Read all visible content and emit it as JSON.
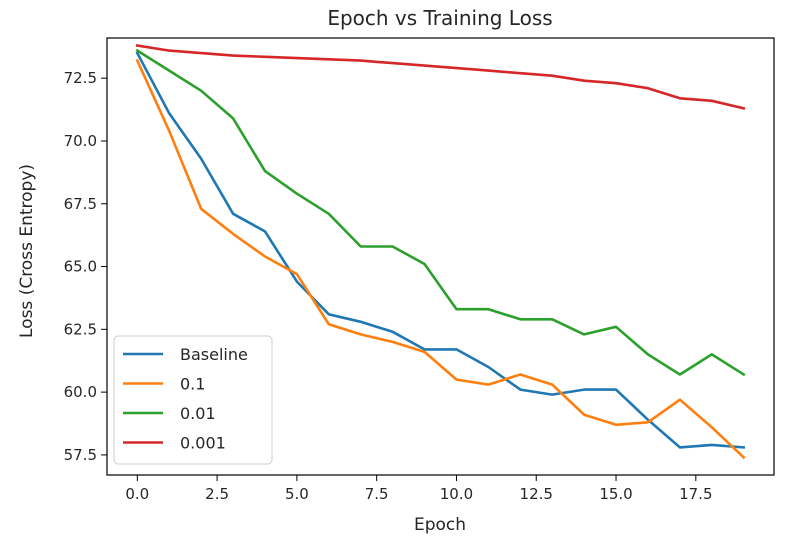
{
  "chart_data": {
    "type": "line",
    "title": "Epoch vs Training Loss",
    "xlabel": "Epoch",
    "ylabel": "Loss (Cross Entropy)",
    "xlim": [
      -0.95,
      19.95
    ],
    "ylim": [
      56.7,
      74.1
    ],
    "xticks": [
      0.0,
      2.5,
      5.0,
      7.5,
      10.0,
      12.5,
      15.0,
      17.5
    ],
    "xtick_labels": [
      "0.0",
      "2.5",
      "5.0",
      "7.5",
      "10.0",
      "12.5",
      "15.0",
      "17.5"
    ],
    "yticks": [
      57.5,
      60.0,
      62.5,
      65.0,
      67.5,
      70.0,
      72.5
    ],
    "ytick_labels": [
      "57.5",
      "60.0",
      "62.5",
      "65.0",
      "67.5",
      "70.0",
      "72.5"
    ],
    "grid": false,
    "legend_position": "lower-left",
    "x": [
      0,
      1,
      2,
      3,
      4,
      5,
      6,
      7,
      8,
      9,
      10,
      11,
      12,
      13,
      14,
      15,
      16,
      17,
      18,
      19
    ],
    "series": [
      {
        "name": "Baseline",
        "color": "#1f77b4",
        "values": [
          73.5,
          71.1,
          69.3,
          67.1,
          66.4,
          64.4,
          63.1,
          62.8,
          62.4,
          61.7,
          61.7,
          61.0,
          60.1,
          59.9,
          60.1,
          60.1,
          58.9,
          57.8,
          57.9,
          57.8
        ]
      },
      {
        "name": "0.1",
        "color": "#ff7f0e",
        "values": [
          73.2,
          70.4,
          67.3,
          66.3,
          65.4,
          64.7,
          62.7,
          62.3,
          62.0,
          61.6,
          60.5,
          60.3,
          60.7,
          60.3,
          59.1,
          58.7,
          58.8,
          59.7,
          58.6,
          57.4
        ]
      },
      {
        "name": "0.01",
        "color": "#2ca02c",
        "values": [
          73.6,
          72.8,
          72.0,
          70.9,
          68.8,
          67.9,
          67.1,
          65.8,
          65.8,
          65.1,
          63.3,
          63.3,
          62.9,
          62.9,
          62.3,
          62.6,
          61.5,
          60.7,
          61.5,
          60.7
        ]
      },
      {
        "name": "0.001",
        "color": "#d62728",
        "values": [
          73.8,
          73.6,
          73.5,
          73.4,
          73.35,
          73.3,
          73.25,
          73.2,
          73.1,
          73.0,
          72.9,
          72.8,
          72.7,
          72.6,
          72.4,
          72.3,
          72.1,
          71.7,
          71.6,
          71.3
        ]
      }
    ]
  }
}
